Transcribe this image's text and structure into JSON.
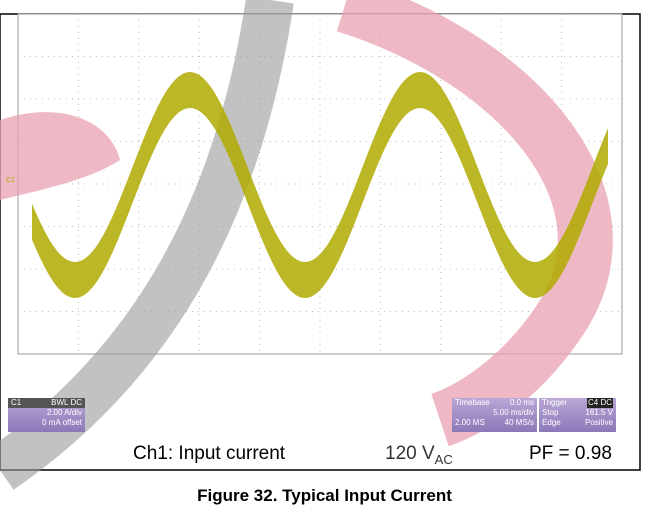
{
  "scope": {
    "channel_marker": "C1",
    "channel": {
      "name": "C1",
      "coupling": "BWL",
      "dc": "DC",
      "scale": "2.00 A/div",
      "offset": "0 mA offset"
    },
    "timebase": {
      "label": "Timebase",
      "delay": "0.0 ms",
      "scale": "5.00 ms/div",
      "samples": "2.00 MS",
      "rate": "40 MS/s"
    },
    "trigger": {
      "label": "Trigger",
      "source": "C4",
      "coupling": "DC",
      "mode": "Stop",
      "level": "161.5 V",
      "type": "Edge",
      "slope": "Positive"
    }
  },
  "caption": {
    "channel": "Ch1: Input current",
    "voltage": "120 V",
    "voltage_sub": "AC",
    "pf": "PF = 0.98"
  },
  "figure_title": "Figure 32. Typical Input Current"
}
